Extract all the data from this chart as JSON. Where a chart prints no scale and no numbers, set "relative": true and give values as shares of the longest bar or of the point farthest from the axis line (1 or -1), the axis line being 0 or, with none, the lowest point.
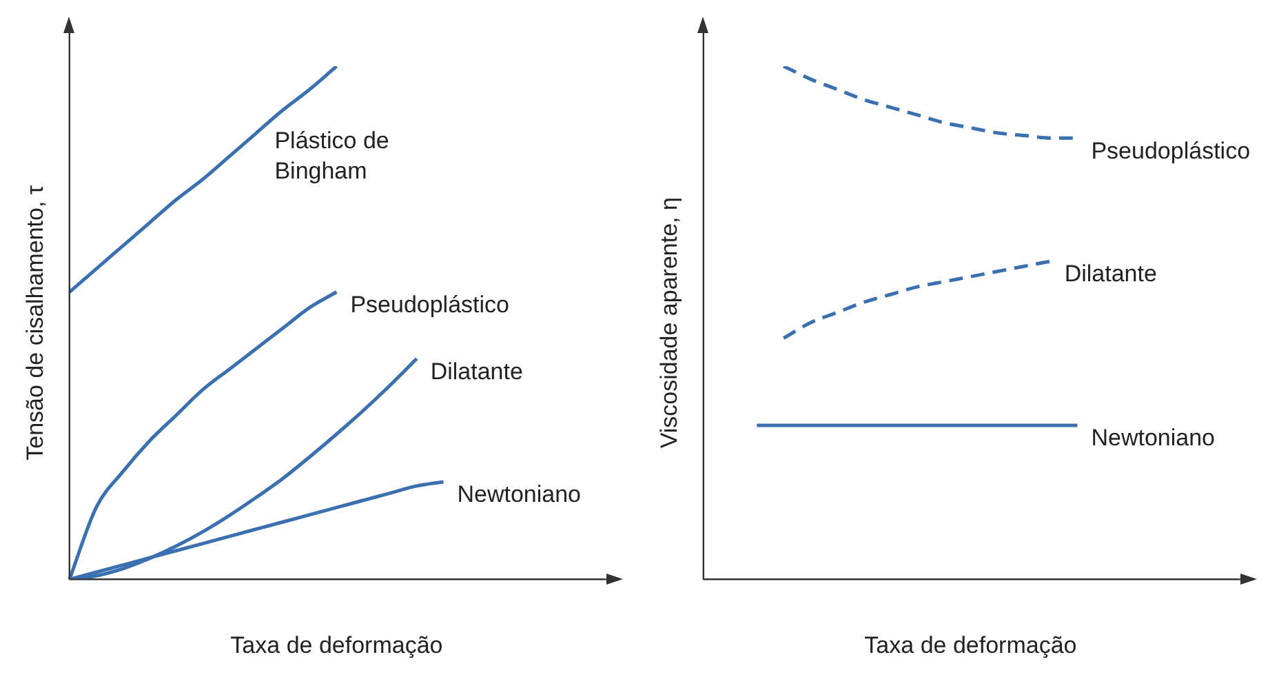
{
  "chart_data": [
    {
      "type": "line",
      "relative": true,
      "xlabel": "Taxa de deformação",
      "ylabel": "Tensão de cisalhamento, τ",
      "categories": [
        null,
        null,
        null,
        null,
        null,
        null,
        null,
        null,
        null,
        null,
        null,
        null,
        null,
        null,
        null,
        null,
        null,
        null,
        null,
        null,
        null
      ],
      "grid": false,
      "legend": false,
      "marker": "none",
      "series": [
        {
          "name": "Plástico de\nBingham",
          "color": "#3a6fb0",
          "line_style": "solid",
          "values": [
            0.56,
            0.605,
            0.65,
            0.695,
            0.74,
            0.78,
            0.825,
            0.87,
            0.915,
            0.955,
            1,
            null,
            null,
            null,
            null,
            null,
            null,
            null,
            null,
            null,
            null
          ]
        },
        {
          "name": "Pseudoplástico",
          "color": "#3a6fb0",
          "line_style": "solid",
          "values": [
            0,
            0.14,
            0.21,
            0.27,
            0.32,
            0.37,
            0.41,
            0.45,
            0.49,
            0.53,
            0.56,
            null,
            null,
            null,
            null,
            null,
            null,
            null,
            null,
            null,
            null
          ]
        },
        {
          "name": "Dilatante",
          "color": "#3a6fb0",
          "line_style": "solid",
          "values": [
            0,
            0.007,
            0.021,
            0.041,
            0.065,
            0.093,
            0.125,
            0.16,
            0.197,
            0.239,
            0.283,
            0.329,
            0.378,
            0.43,
            null,
            null,
            null,
            null,
            null,
            null,
            null
          ]
        },
        {
          "name": "Newtoniano",
          "color": "#3a6fb0",
          "line_style": "solid",
          "values": [
            0,
            0.014,
            0.028,
            0.042,
            0.056,
            0.07,
            0.084,
            0.098,
            0.112,
            0.126,
            0.14,
            0.154,
            0.168,
            0.182,
            0.19,
            null,
            null,
            null,
            null,
            null,
            null
          ]
        }
      ]
    },
    {
      "type": "line",
      "relative": true,
      "xlabel": "Taxa de deformação",
      "ylabel": "Viscosidade aparente, η",
      "categories": [
        null,
        null,
        null,
        null,
        null,
        null,
        null,
        null,
        null,
        null,
        null,
        null,
        null,
        null,
        null,
        null,
        null,
        null,
        null,
        null,
        null
      ],
      "grid": false,
      "legend": false,
      "marker": "none",
      "series": [
        {
          "name": "Pseudoplástico",
          "color": "#3a6fb0",
          "line_style": "dashed",
          "values": [
            null,
            null,
            null,
            1,
            0.975,
            0.955,
            0.935,
            0.92,
            0.905,
            0.89,
            0.88,
            0.87,
            0.865,
            0.86,
            0.86,
            null,
            null,
            null,
            null,
            null,
            null
          ]
        },
        {
          "name": "Dilatante",
          "color": "#3a6fb0",
          "line_style": "dashed",
          "values": [
            null,
            null,
            null,
            0.47,
            0.5,
            0.52,
            0.54,
            0.555,
            0.57,
            0.58,
            0.59,
            0.6,
            0.61,
            0.62,
            null,
            null,
            null,
            null,
            null,
            null,
            null
          ]
        },
        {
          "name": "Newtoniano",
          "color": "#3a6fb0",
          "line_style": "solid",
          "values": [
            null,
            null,
            0.3,
            0.3,
            0.3,
            0.3,
            0.3,
            0.3,
            0.3,
            0.3,
            0.3,
            0.3,
            0.3,
            0.3,
            0.3,
            null,
            null,
            null,
            null,
            null,
            null
          ]
        }
      ]
    }
  ]
}
